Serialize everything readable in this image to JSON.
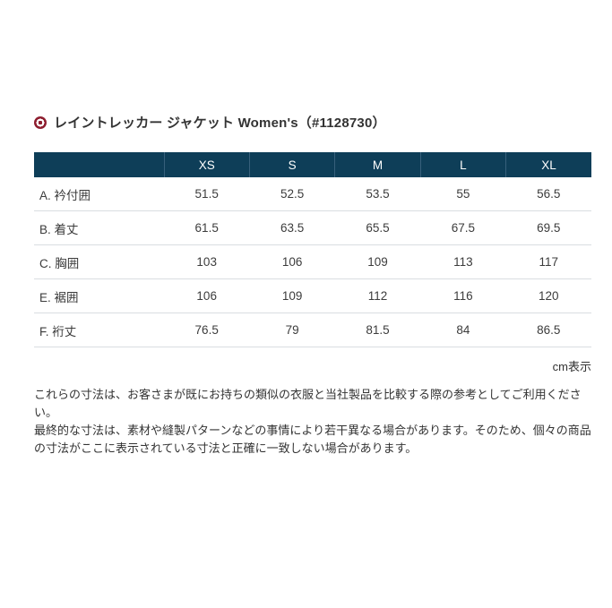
{
  "header": {
    "icon": "bullseye-icon",
    "title": "レイントレッカー ジャケット Women's（#1128730）"
  },
  "table": {
    "columns": [
      "XS",
      "S",
      "M",
      "L",
      "XL"
    ],
    "rows": [
      {
        "label": "A. 衿付囲",
        "values": [
          "51.5",
          "52.5",
          "53.5",
          "55",
          "56.5"
        ]
      },
      {
        "label": "B. 着丈",
        "values": [
          "61.5",
          "63.5",
          "65.5",
          "67.5",
          "69.5"
        ]
      },
      {
        "label": "C. 胸囲",
        "values": [
          "103",
          "106",
          "109",
          "113",
          "117"
        ]
      },
      {
        "label": "E. 裾囲",
        "values": [
          "106",
          "109",
          "112",
          "116",
          "120"
        ]
      },
      {
        "label": "F. 裄丈",
        "values": [
          "76.5",
          "79",
          "81.5",
          "84",
          "86.5"
        ]
      }
    ],
    "unit_label": "cm表示"
  },
  "disclaimer": {
    "line1": "これらの寸法は、お客さまが既にお持ちの類似の衣服と当社製品を比較する際の参考としてご利用ください。",
    "rest": "最終的な寸法は、素材や縫製パターンなどの事情により若干異なる場合があります。そのため、個々の商品の寸法がここに表示されている寸法と正確に一致しない場合があります。"
  },
  "colors": {
    "header_bg": "#0e3e58",
    "icon_red": "#8e1f30",
    "row_divider": "#d9dde1",
    "text": "#333333"
  }
}
